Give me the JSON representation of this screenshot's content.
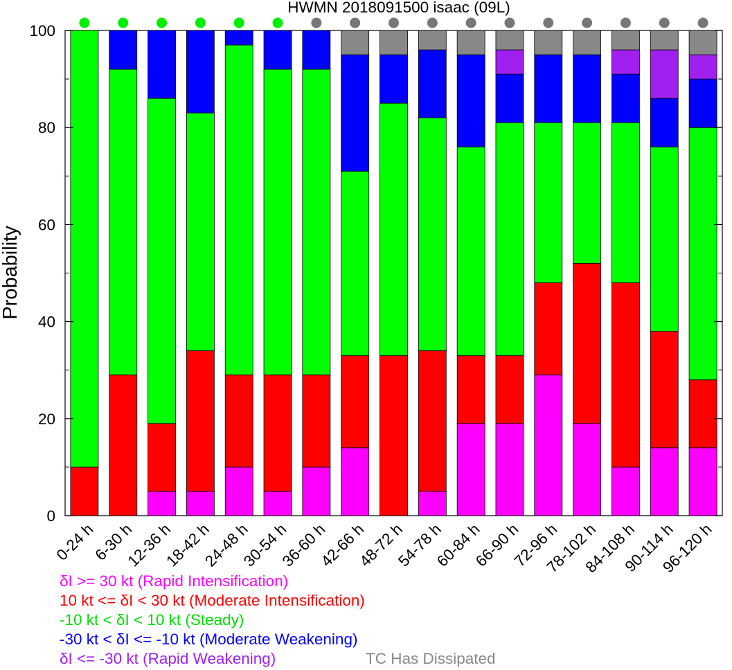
{
  "chart_data": {
    "type": "bar",
    "stacked": true,
    "title": "HWMN 2018091500 isaac (09L)",
    "ylabel": "Probability",
    "xlabel": "",
    "ylim": [
      0,
      100
    ],
    "yticks": [
      0,
      20,
      40,
      60,
      80,
      100
    ],
    "grid": false,
    "categories": [
      "0-24 h",
      "6-30 h",
      "12-36 h",
      "18-42 h",
      "24-48 h",
      "30-54 h",
      "36-60 h",
      "42-66 h",
      "48-72 h",
      "54-78 h",
      "60-84 h",
      "66-90 h",
      "72-96 h",
      "78-102 h",
      "84-108 h",
      "90-114 h",
      "96-120 h"
    ],
    "series": [
      {
        "name": "δI >= 30 kt (Rapid Intensification)",
        "color": "#ff00ff",
        "values": [
          0,
          0,
          5,
          5,
          10,
          5,
          10,
          14,
          0,
          5,
          19,
          19,
          29,
          19,
          10,
          14,
          14
        ]
      },
      {
        "name": "10 kt <= δI < 30 kt (Moderate Intensification)",
        "color": "#ff0000",
        "values": [
          10,
          29,
          14,
          29,
          19,
          24,
          19,
          19,
          33,
          29,
          14,
          14,
          19,
          33,
          38,
          24,
          14
        ]
      },
      {
        "name": "-10 kt < δI < 10 kt (Steady)",
        "color": "#00ff00",
        "values": [
          90,
          63,
          67,
          49,
          68,
          63,
          63,
          38,
          52,
          48,
          43,
          48,
          33,
          29,
          33,
          38,
          52
        ]
      },
      {
        "name": "-30 kt < δI <= -10 kt (Moderate Weakening)",
        "color": "#0000ff",
        "values": [
          0,
          8,
          14,
          17,
          3,
          8,
          8,
          24,
          10,
          14,
          19,
          10,
          14,
          14,
          10,
          10,
          10
        ]
      },
      {
        "name": "δI <= -30 kt (Rapid Weakening)",
        "color": "#a020f0",
        "values": [
          0,
          0,
          0,
          0,
          0,
          0,
          0,
          0,
          0,
          0,
          0,
          5,
          0,
          0,
          5,
          10,
          5
        ]
      },
      {
        "name": "TC Has Dissipated",
        "color": "#888888",
        "values": [
          0,
          0,
          0,
          0,
          0,
          0,
          0,
          5,
          5,
          4,
          5,
          4,
          5,
          5,
          4,
          4,
          5
        ]
      }
    ],
    "status_dots": {
      "colors": [
        "#00ee00",
        "#00ee00",
        "#00ee00",
        "#00ee00",
        "#00ee00",
        "#00ee00",
        "#777777",
        "#777777",
        "#777777",
        "#777777",
        "#777777",
        "#777777",
        "#777777",
        "#777777",
        "#777777",
        "#777777",
        "#777777"
      ]
    }
  },
  "legend": {
    "ri": "δI >= 30 kt (Rapid Intensification)",
    "mi": "10 kt <= δI < 30 kt (Moderate Intensification)",
    "steady": "-10 kt < δI < 10 kt (Steady)",
    "mw": "-30 kt < δI <= -10 kt (Moderate Weakening)",
    "rw": "δI <= -30 kt (Rapid Weakening)",
    "dissipated": "TC Has Dissipated"
  },
  "colors": {
    "ri": "#ff00ff",
    "mi": "#ff0000",
    "steady": "#00dd00",
    "mw": "#0000ff",
    "rw": "#a020f0",
    "dissipated": "#888888"
  }
}
